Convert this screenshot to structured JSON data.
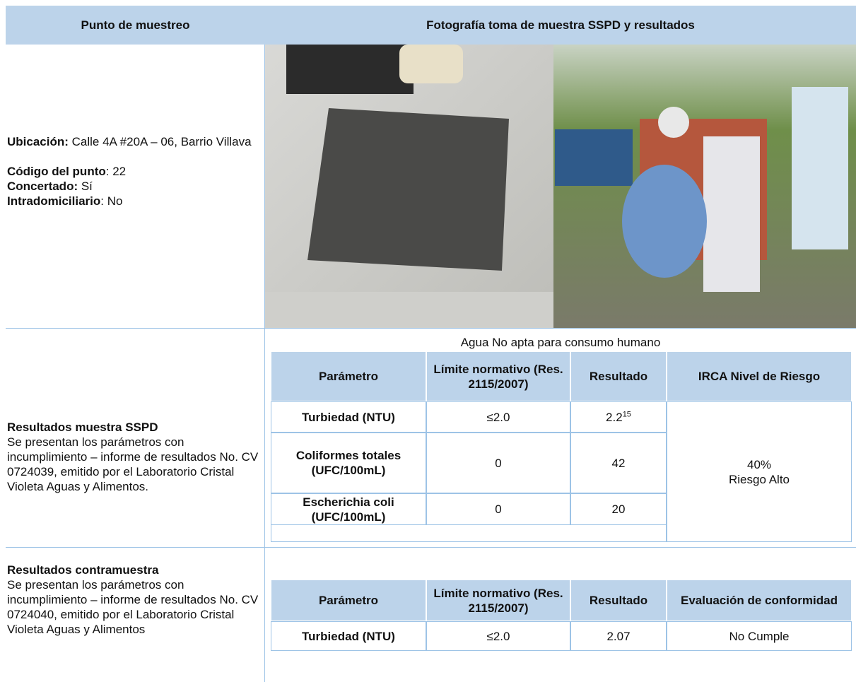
{
  "header": {
    "col1": "Punto de muestreo",
    "col2": "Fotografía toma de muestra SSPD y resultados"
  },
  "point": {
    "location_label": "Ubicación:",
    "location_value": " Calle 4A #20A – 06, Barrio Villava",
    "code_label": "Código del punto",
    "code_value": ": 22",
    "agreed_label": "Concertado:",
    "agreed_value": " Sí",
    "indoor_label": "Intradomiciliario",
    "indoor_value": ": No"
  },
  "sspd": {
    "title": "Resultados muestra SSPD",
    "description": "Se presentan los parámetros con incumplimiento – informe de resultados No. CV 0724039, emitido por el Laboratorio Cristal Violeta Aguas y Alimentos.",
    "caption": "Agua No apta para consumo humano",
    "columns": [
      "Parámetro",
      "Límite normativo (Res. 2115/2007)",
      "Resultado",
      "IRCA Nivel de Riesgo"
    ],
    "rows": [
      [
        "Turbiedad (NTU)",
        "≤2.0",
        "2.2"
      ],
      [
        "Coliformes totales (UFC/100mL)",
        "0",
        "42"
      ],
      [
        "Escherichia coli (UFC/100mL)",
        "0",
        "20"
      ]
    ],
    "result_footnote": "15",
    "irca_value": "40%",
    "irca_level": "Riesgo Alto"
  },
  "counter": {
    "title": "Resultados contramuestra",
    "description": "Se presentan los parámetros con incumplimiento – informe de resultados No. CV 0724040, emitido por el Laboratorio Cristal Violeta Aguas y Alimentos",
    "columns": [
      "Parámetro",
      "Límite normativo (Res. 2115/2007)",
      "Resultado",
      "Evaluación de conformidad"
    ],
    "rows": [
      [
        "Turbiedad (NTU)",
        "≤2.0",
        "2.07",
        "No Cumple"
      ]
    ]
  }
}
